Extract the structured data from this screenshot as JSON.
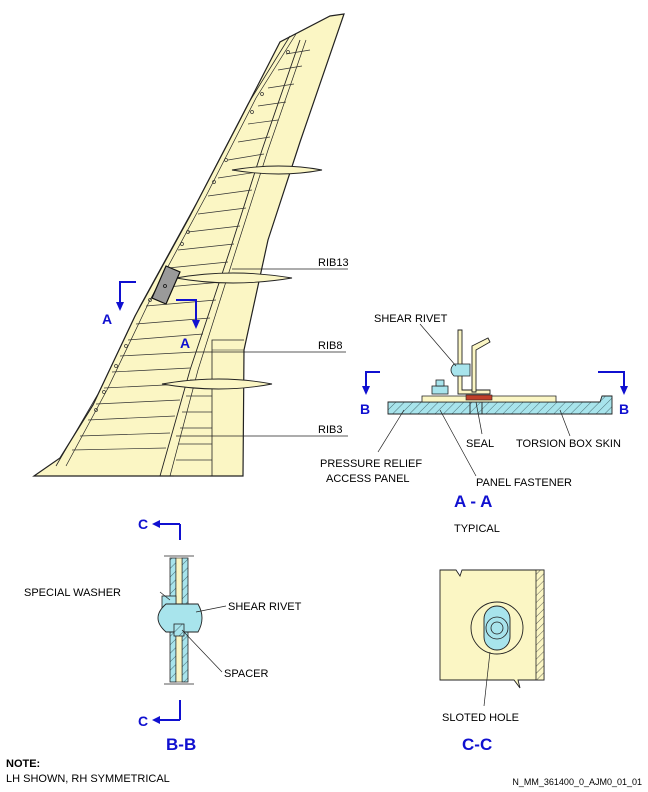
{
  "colors": {
    "skin": "#fbf6c4",
    "blue": "#1010d0",
    "section_fill": "#a8e4ec",
    "seal": "#c0402a",
    "panel": "#9a9a9a"
  },
  "wing": {
    "rib_labels": {
      "rib13": "RIB13",
      "rib8": "RIB8",
      "rib3": "RIB3"
    },
    "section_marker": "A"
  },
  "view_aa": {
    "title": "A - A",
    "subtitle": "TYPICAL",
    "section_marker": "B",
    "labels": {
      "shear_rivet": "SHEAR RIVET",
      "seal": "SEAL",
      "torsion_box_skin": "TORSION BOX SKIN",
      "pressure_relief_line1": "PRESSURE RELIEF",
      "pressure_relief_line2": "ACCESS PANEL",
      "panel_fastener": "PANEL FASTENER"
    }
  },
  "view_bb": {
    "title": "B-B",
    "section_marker": "C",
    "labels": {
      "special_washer": "SPECIAL WASHER",
      "shear_rivet": "SHEAR RIVET",
      "spacer": "SPACER"
    }
  },
  "view_cc": {
    "title": "C-C",
    "labels": {
      "sloted_hole": "SLOTED HOLE"
    }
  },
  "note": {
    "heading": "NOTE:",
    "text": "LH SHOWN, RH SYMMETRICAL"
  },
  "figure_ref": "N_MM_361400_0_AJM0_01_01"
}
